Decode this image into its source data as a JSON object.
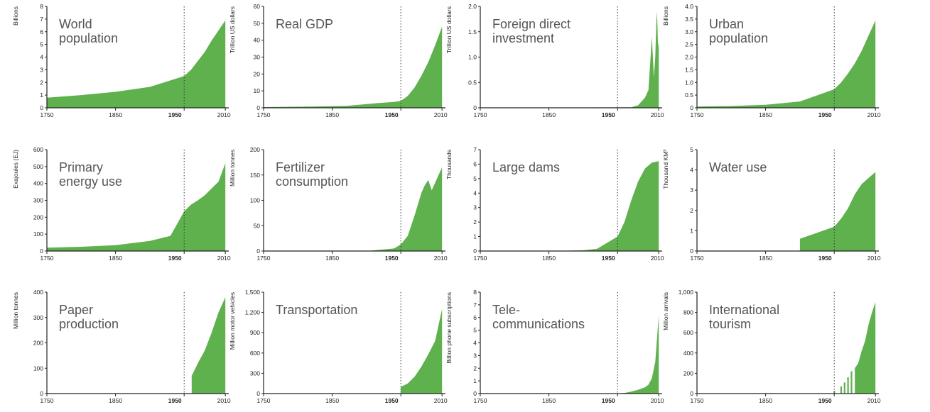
{
  "chart_data": [
    {
      "type": "area",
      "title_lines": [
        "World",
        "population"
      ],
      "ylabel": "Billions",
      "ylim": [
        0,
        8
      ],
      "yticks": [
        "0",
        "1",
        "2",
        "3",
        "4",
        "5",
        "6",
        "7",
        "8"
      ],
      "x": [
        1750,
        1800,
        1850,
        1900,
        1950,
        1960,
        1970,
        1980,
        1990,
        2000,
        2010
      ],
      "values": [
        0.8,
        1.0,
        1.26,
        1.65,
        2.5,
        3.0,
        3.7,
        4.4,
        5.3,
        6.1,
        6.9
      ]
    },
    {
      "type": "area",
      "title_lines": [
        "Real GDP"
      ],
      "ylabel": "Trillion US dollars",
      "ylim": [
        0,
        60
      ],
      "yticks": [
        "0",
        "10",
        "20",
        "30",
        "40",
        "50",
        "60"
      ],
      "x": [
        1750,
        1820,
        1870,
        1913,
        1940,
        1950,
        1960,
        1970,
        1980,
        1990,
        2000,
        2010
      ],
      "values": [
        0.4,
        0.7,
        1.1,
        2.7,
        3.5,
        4.1,
        7,
        12,
        19,
        27,
        37,
        48
      ]
    },
    {
      "type": "area",
      "title_lines": [
        "Foreign direct",
        "investment"
      ],
      "ylabel": "Trillion US dollars",
      "ylim": [
        0,
        2
      ],
      "yticks": [
        "0",
        "0.5",
        "1.0",
        "1.5",
        "2.0"
      ],
      "x": [
        1750,
        1970,
        1980,
        1990,
        1995,
        2000,
        2003,
        2005,
        2007,
        2008,
        2009,
        2010
      ],
      "values": [
        0,
        0.01,
        0.05,
        0.2,
        0.35,
        1.4,
        0.6,
        1.0,
        1.9,
        1.7,
        1.2,
        1.3
      ]
    },
    {
      "type": "area",
      "title_lines": [
        "Urban",
        "population"
      ],
      "ylabel": "Billions",
      "ylim": [
        0,
        4
      ],
      "yticks": [
        "0",
        "0.5",
        "1.0",
        "1.5",
        "2.0",
        "2.5",
        "3.0",
        "3.5",
        "4.0"
      ],
      "x": [
        1750,
        1800,
        1850,
        1900,
        1950,
        1960,
        1970,
        1980,
        1990,
        2000,
        2010
      ],
      "values": [
        0.05,
        0.07,
        0.12,
        0.25,
        0.73,
        1.0,
        1.35,
        1.75,
        2.25,
        2.85,
        3.45
      ]
    },
    {
      "type": "area",
      "title_lines": [
        "Primary",
        "energy use"
      ],
      "ylabel": "Exajoules (EJ)",
      "ylim": [
        0,
        600
      ],
      "yticks": [
        "0",
        "100",
        "200",
        "300",
        "400",
        "500",
        "600"
      ],
      "x": [
        1750,
        1800,
        1850,
        1900,
        1930,
        1950,
        1960,
        1970,
        1980,
        1990,
        2000,
        2010
      ],
      "values": [
        20,
        25,
        35,
        60,
        90,
        235,
        275,
        300,
        330,
        370,
        410,
        520
      ]
    },
    {
      "type": "area",
      "title_lines": [
        "Fertilizer",
        "consumption"
      ],
      "ylabel": "Million tonnes",
      "ylim": [
        0,
        200
      ],
      "yticks": [
        "0",
        "50",
        "100",
        "150",
        "200"
      ],
      "x": [
        1750,
        1900,
        1940,
        1950,
        1960,
        1970,
        1980,
        1985,
        1990,
        1995,
        2000,
        2005,
        2010
      ],
      "values": [
        0,
        0,
        5,
        13,
        30,
        70,
        115,
        130,
        140,
        120,
        135,
        150,
        165
      ]
    },
    {
      "type": "area",
      "title_lines": [
        "Large dams"
      ],
      "ylabel": "Thousands",
      "ylim": [
        0,
        7
      ],
      "yticks": [
        "0",
        "1",
        "2",
        "3",
        "4",
        "5",
        "6",
        "7"
      ],
      "x": [
        1750,
        1850,
        1900,
        1920,
        1950,
        1960,
        1970,
        1980,
        1990,
        2000,
        2010
      ],
      "values": [
        0,
        0,
        0.05,
        0.15,
        1.0,
        2.0,
        3.5,
        4.8,
        5.7,
        6.1,
        6.2
      ]
    },
    {
      "type": "area",
      "title_lines": [
        "Water use"
      ],
      "ylabel": "Thousand KM³",
      "ylim": [
        0,
        5
      ],
      "yticks": [
        "0",
        "1",
        "2",
        "3",
        "4",
        "5"
      ],
      "x": [
        1900,
        1950,
        1960,
        1970,
        1980,
        1990,
        2000,
        2010
      ],
      "values": [
        0.6,
        1.2,
        1.6,
        2.1,
        2.8,
        3.3,
        3.6,
        3.9
      ]
    },
    {
      "type": "area",
      "title_lines": [
        "Paper",
        "production"
      ],
      "ylabel": "Million tonnes",
      "ylim": [
        0,
        400
      ],
      "yticks": [
        "0",
        "100",
        "200",
        "300",
        "400"
      ],
      "x": [
        1961,
        1970,
        1980,
        1990,
        2000,
        2010
      ],
      "values": [
        70,
        120,
        170,
        240,
        320,
        380
      ]
    },
    {
      "type": "area",
      "title_lines": [
        "Transportation"
      ],
      "ylabel": "Million motor vehicles",
      "ylim": [
        0,
        1500
      ],
      "yticks": [
        "0",
        "300",
        "600",
        "900",
        "1,200",
        "1,500"
      ],
      "x": [
        1950,
        1960,
        1970,
        1980,
        1990,
        2000,
        2010
      ],
      "values": [
        100,
        150,
        250,
        400,
        580,
        780,
        1250
      ]
    },
    {
      "type": "area",
      "title_lines": [
        "Tele-",
        "communications"
      ],
      "ylabel": "Billion phone subscriptions",
      "ylim": [
        0,
        8
      ],
      "yticks": [
        "0",
        "1",
        "2",
        "3",
        "4",
        "5",
        "6",
        "7",
        "8"
      ],
      "x": [
        1750,
        1950,
        1960,
        1970,
        1980,
        1990,
        1995,
        2000,
        2005,
        2010
      ],
      "values": [
        0,
        0.02,
        0.05,
        0.15,
        0.3,
        0.5,
        0.7,
        1.2,
        2.5,
        6.2
      ]
    },
    {
      "type": "area",
      "title_lines": [
        "International",
        "tourism"
      ],
      "ylabel": "Million arrivals",
      "ylim": [
        0,
        1000
      ],
      "yticks": [
        "0",
        "200",
        "400",
        "600",
        "800",
        "1,000"
      ],
      "x": [
        1980,
        1985,
        1990,
        1995,
        2000,
        2005,
        2010
      ],
      "values": [
        250,
        300,
        420,
        520,
        680,
        800,
        900
      ],
      "bars": [
        [
          1950,
          25
        ],
        [
          1960,
          70
        ],
        [
          1965,
          110
        ],
        [
          1970,
          160
        ],
        [
          1975,
          220
        ]
      ]
    }
  ],
  "xticks": [
    "1750",
    "1850",
    "1950",
    "2010"
  ],
  "emphasis_tick": "1950",
  "colors": {
    "fill": "#5fb14e",
    "axis": "#222222",
    "text": "#555555"
  }
}
